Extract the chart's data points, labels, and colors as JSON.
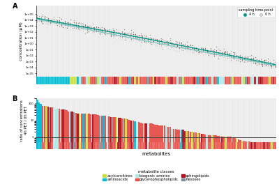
{
  "n_metabolites": 130,
  "background_color": "#ffffff",
  "panel_bg": "#ebebeb",
  "colorbar_bg": "#d8d8d8",
  "ylabel_a": "concentration (μM)",
  "ylabel_b": "ratio of concentrations\n4h PET / 0h PET",
  "xlabel": "metabolites",
  "legend_title_sampling": "sampling time-point",
  "legend_4h": "4 h",
  "legend_0h": "0 h",
  "legend_title_class": "metabolite classes",
  "class_labels": [
    "acylcarnitines",
    "aminoacids",
    "biogenic amines",
    "glycerophospholipids",
    "sphingolipids",
    "hexoses"
  ],
  "class_colors": [
    "#c8e040",
    "#00bcd4",
    "#b0e8e8",
    "#e8504a",
    "#b01020",
    "#78909c"
  ],
  "color_4h_scatter": "#5d4037",
  "color_0h_scatter": "#c8c8c8",
  "line_color_4h": "#009688",
  "line_color_0h": "#80cbc4",
  "ratio_line_color": "#444444",
  "yticks_a": [
    1e-05,
    0.0001,
    0.001,
    0.01,
    0.1,
    1.0,
    10.0,
    100.0,
    1000.0,
    10000.0,
    100000.0
  ],
  "ytick_labels_a": [
    "1e-05",
    "1e-04",
    "1e-03",
    "1e-02",
    "1e-01",
    "1e+00",
    "1e+01",
    "1e+02",
    "1e+03",
    "1e+04",
    "1e+05"
  ],
  "ylim_a_min": 3e-06,
  "ylim_a_max": 3000000.0,
  "yticks_b": [
    1,
    10,
    100
  ],
  "ytick_labels_b": [
    "1",
    "10",
    "100"
  ],
  "ylim_b_min": 0.5,
  "ylim_b_max": 200
}
